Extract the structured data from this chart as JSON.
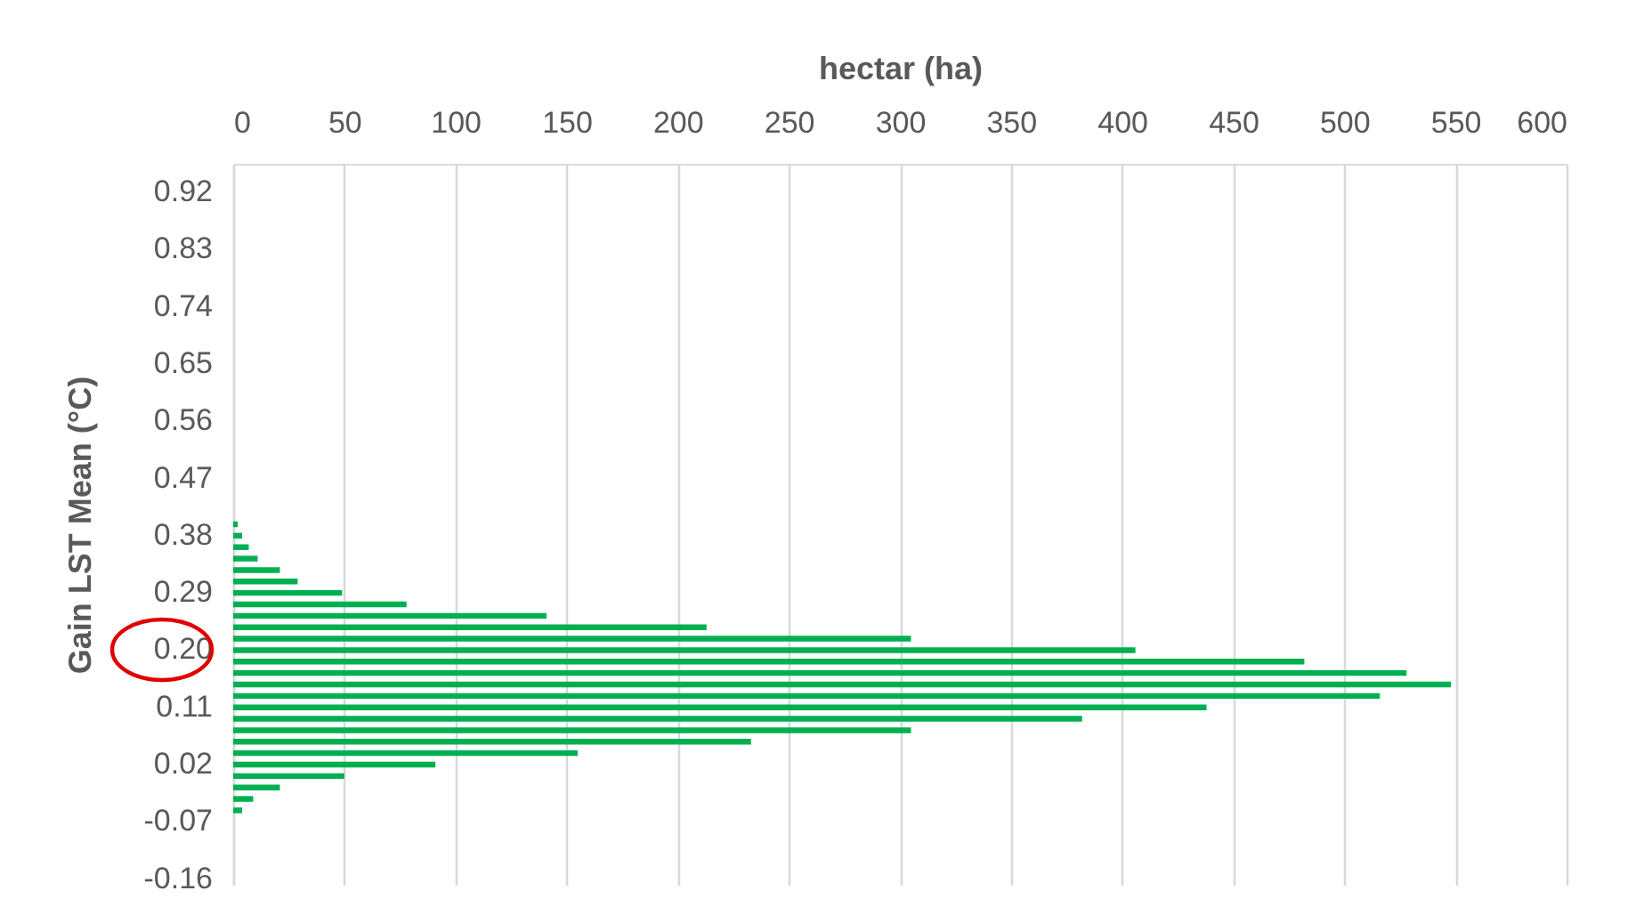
{
  "chart_data": {
    "type": "bar",
    "orientation": "horizontal",
    "xlabel": "hectar (ha)",
    "ylabel": "Gain LST Mean (°C)",
    "categories": [
      null,
      null,
      "0.92",
      null,
      null,
      null,
      null,
      "0.83",
      null,
      null,
      null,
      null,
      "0.74",
      null,
      null,
      null,
      null,
      "0.65",
      null,
      null,
      null,
      null,
      "0.56",
      null,
      null,
      null,
      null,
      "0.47",
      null,
      null,
      null,
      null,
      "0.38",
      null,
      null,
      null,
      null,
      "0.29",
      null,
      null,
      null,
      null,
      "0.20",
      null,
      null,
      null,
      null,
      "0.11",
      null,
      null,
      null,
      null,
      "0.02",
      null,
      null,
      null,
      null,
      "-0.07",
      null,
      null,
      null,
      null,
      "-0.16"
    ],
    "values": [
      null,
      null,
      null,
      null,
      null,
      null,
      null,
      null,
      null,
      null,
      null,
      null,
      null,
      null,
      null,
      null,
      null,
      null,
      null,
      null,
      null,
      null,
      null,
      null,
      null,
      null,
      null,
      null,
      null,
      null,
      null,
      2,
      4,
      7,
      11,
      21,
      29,
      49,
      78,
      141,
      213,
      305,
      406,
      482,
      528,
      548,
      516,
      438,
      382,
      305,
      233,
      155,
      91,
      50,
      21,
      9,
      4,
      null,
      null,
      null,
      null,
      null,
      null
    ],
    "color": "#00b050",
    "xlim": [
      0,
      600
    ],
    "xticks": [
      0,
      50,
      100,
      150,
      200,
      250,
      300,
      350,
      400,
      450,
      500,
      550,
      600
    ],
    "grid": "x"
  }
}
